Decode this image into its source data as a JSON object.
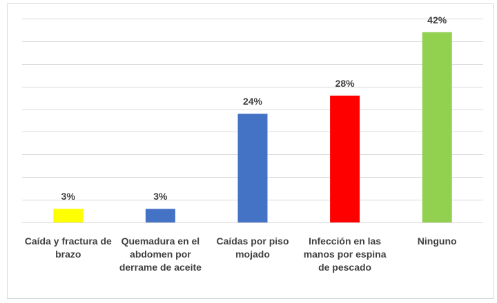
{
  "chart_data": {
    "type": "bar",
    "categories": [
      "Caída y fractura de brazo",
      "Quemadura en el abdomen por derrame de aceite",
      "Caídas por piso mojado",
      "Infección en las manos por espina de pescado",
      "Ninguno"
    ],
    "values": [
      3,
      3,
      24,
      28,
      42
    ],
    "value_labels": [
      "3%",
      "3%",
      "24%",
      "28%",
      "42%"
    ],
    "colors": [
      "#ffff00",
      "#4472c4",
      "#4472c4",
      "#ff0000",
      "#92d050"
    ],
    "ylim": [
      0,
      45
    ],
    "yticks": [
      0,
      5,
      10,
      15,
      20,
      25,
      30,
      35,
      40,
      45
    ],
    "grid": true
  }
}
